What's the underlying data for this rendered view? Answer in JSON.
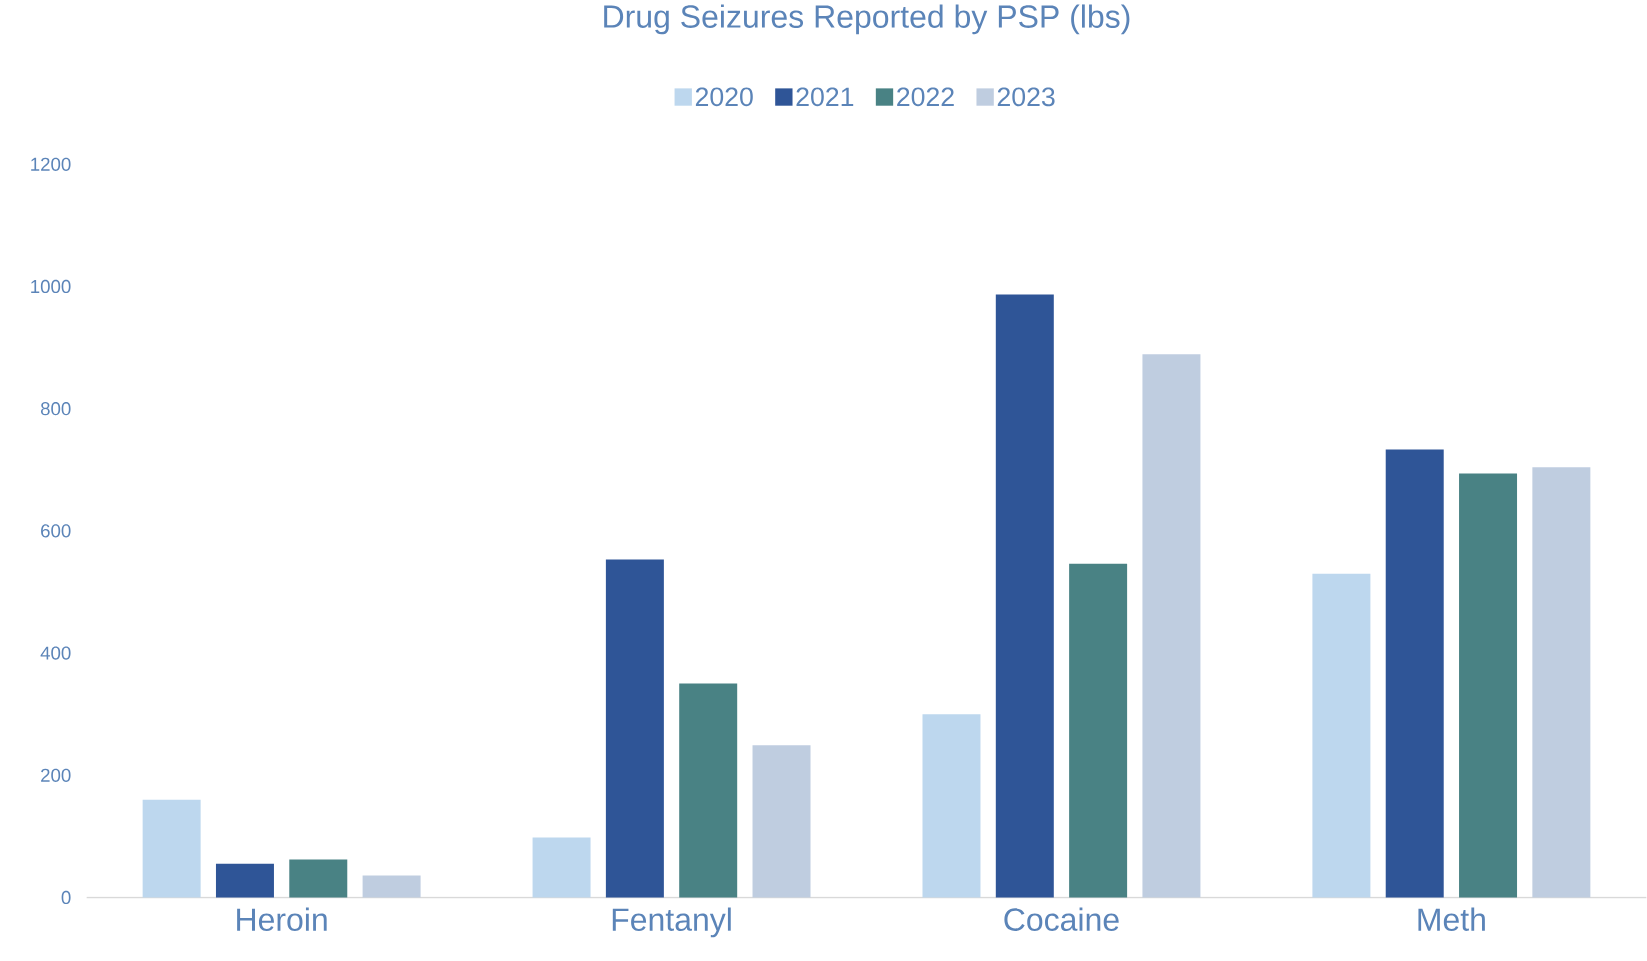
{
  "chart_data": {
    "type": "bar",
    "title": "Drug Seizures Reported by PSP (lbs)",
    "categories": [
      "Heroin",
      "Fentanyl",
      "Cocaine",
      "Meth"
    ],
    "series": [
      {
        "name": "2020",
        "color": "#bdd7ee",
        "values": [
          160,
          98,
          300,
          530
        ]
      },
      {
        "name": "2021",
        "color": "#2f5597",
        "values": [
          55,
          553,
          987,
          733
        ]
      },
      {
        "name": "2022",
        "color": "#498284",
        "values": [
          62,
          350,
          546,
          694
        ]
      },
      {
        "name": "2023",
        "color": "#bfcde0",
        "values": [
          36,
          249,
          889,
          704
        ]
      }
    ],
    "ylim": [
      0,
      1200
    ],
    "yticks": [
      0,
      200,
      400,
      600,
      800,
      1000,
      1200
    ],
    "grid": false,
    "legend": "top"
  }
}
